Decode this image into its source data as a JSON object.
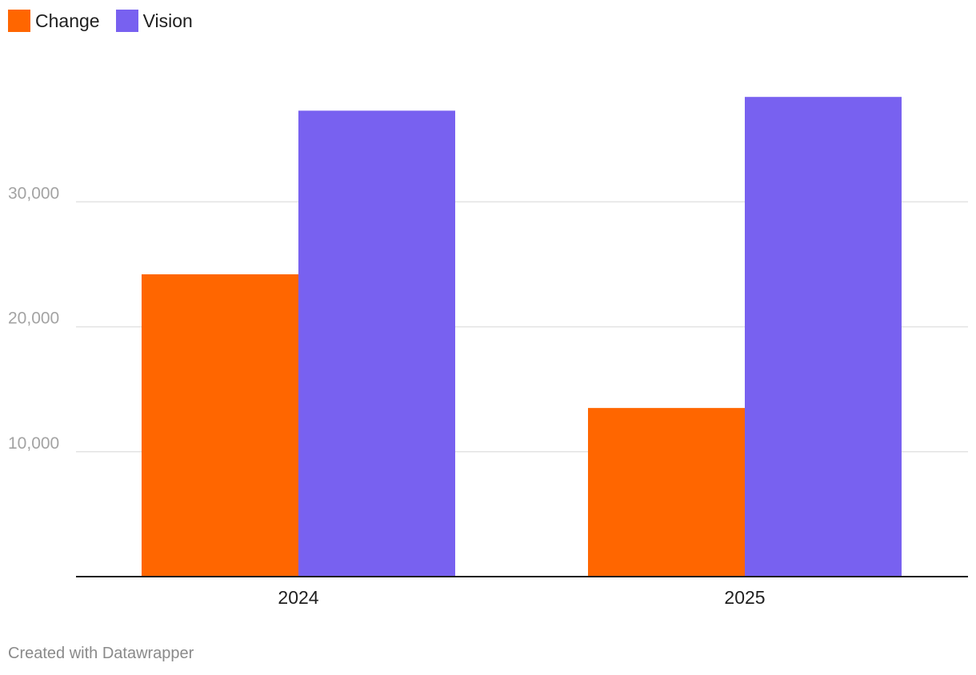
{
  "legend": {
    "items": [
      {
        "label": "Change",
        "color": "#ff6600"
      },
      {
        "label": "Vision",
        "color": "#7861f0"
      }
    ]
  },
  "footer": {
    "credit": "Created with Datawrapper"
  },
  "chart_data": {
    "type": "bar",
    "title": "",
    "xlabel": "",
    "ylabel": "",
    "categories": [
      "2024",
      "2025"
    ],
    "series": [
      {
        "name": "Change",
        "color": "#ff6600",
        "values": [
          24200,
          13500
        ]
      },
      {
        "name": "Vision",
        "color": "#7861f0",
        "values": [
          37300,
          38400
        ]
      }
    ],
    "ylim": [
      0,
      38400
    ],
    "yticks": [
      10000,
      20000,
      30000
    ],
    "ytick_labels": [
      "10,000",
      "20,000",
      "30,000"
    ],
    "grid": true,
    "legend_position": "top-left"
  }
}
